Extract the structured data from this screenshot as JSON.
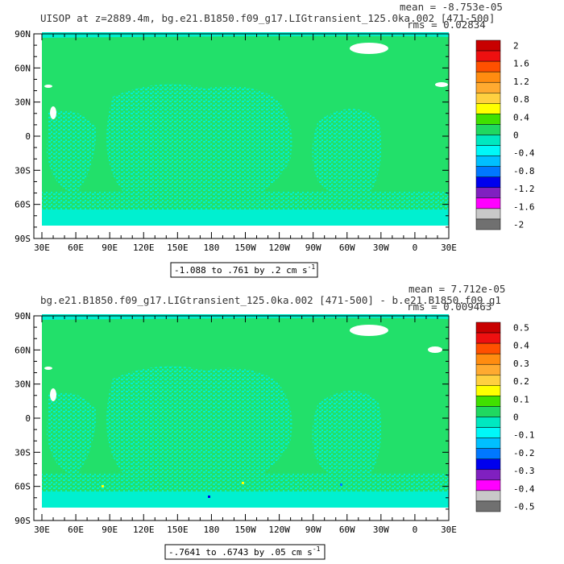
{
  "chart_data": [
    {
      "type": "heatmap",
      "title": "UISOP at z=2889.4m, bg.e21.B1850.f09_g17.LIGtransient_125.0ka.002 [471-500]",
      "stats": {
        "mean": "mean = -8.753e-05",
        "rms": "rms = 0.02834"
      },
      "x_ticks": [
        "30E",
        "60E",
        "90E",
        "120E",
        "150E",
        "180",
        "150W",
        "120W",
        "90W",
        "60W",
        "30W",
        "0",
        "30E"
      ],
      "y_ticks": [
        "90N",
        "60N",
        "30N",
        "0",
        "30S",
        "60S",
        "90S"
      ],
      "range_label": "-1.088 to .761 by .2 cm s",
      "range_unit_sup": "-1",
      "colorbar": {
        "labels": [
          "2",
          "1.6",
          "1.2",
          "0.8",
          "0.4",
          "0",
          "-0.4",
          "-0.8",
          "-1.2",
          "-1.6",
          "-2"
        ],
        "colors": [
          "#c80000",
          "#ee1010",
          "#ff5000",
          "#ff8c10",
          "#ffaa30",
          "#ffd040",
          "#ffff00",
          "#40e000",
          "#20d860",
          "#00e8c0",
          "#00f8f8",
          "#00c0ff",
          "#0078ff",
          "#0000ee",
          "#8020c0",
          "#ff00ff",
          "#c8c8c8",
          "#707070"
        ]
      }
    },
    {
      "type": "heatmap",
      "title": "bg.e21.B1850.f09_g17.LIGtransient_125.0ka.002 [471-500] - b.e21.B1850.f09_g1",
      "stats": {
        "mean": "mean = 7.712e-05",
        "rms": "rms = 0.009463"
      },
      "x_ticks": [
        "30E",
        "60E",
        "90E",
        "120E",
        "150E",
        "180",
        "150W",
        "120W",
        "90W",
        "60W",
        "30W",
        "0",
        "30E"
      ],
      "y_ticks": [
        "90N",
        "60N",
        "30N",
        "0",
        "30S",
        "60S",
        "90S"
      ],
      "range_label": "-.7641 to .6743 by .05 cm s",
      "range_unit_sup": "-1",
      "colorbar": {
        "labels": [
          "0.5",
          "0.4",
          "0.3",
          "0.2",
          "0.1",
          "0",
          "-0.1",
          "-0.2",
          "-0.3",
          "-0.4",
          "-0.5"
        ],
        "colors": [
          "#c80000",
          "#ee1010",
          "#ff5000",
          "#ff8c10",
          "#ffaa30",
          "#ffd040",
          "#ffff00",
          "#40e000",
          "#20d860",
          "#00e8c0",
          "#00f8f8",
          "#00c0ff",
          "#0078ff",
          "#0000ee",
          "#8020c0",
          "#ff00ff",
          "#c8c8c8",
          "#707070"
        ]
      }
    }
  ]
}
